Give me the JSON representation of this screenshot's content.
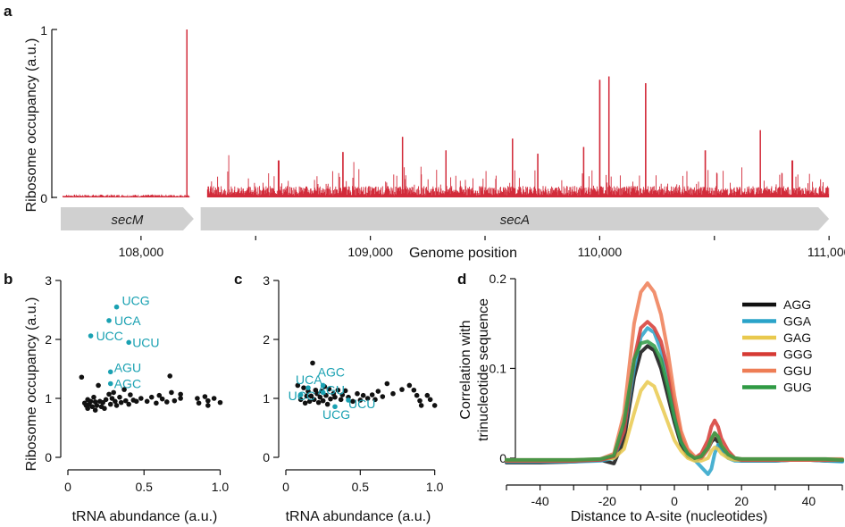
{
  "chart_data": [
    {
      "panel": "a",
      "type": "area",
      "ylabel": "Ribosome occupancy (a.u.)",
      "xlabel": "Genome position",
      "ylim": [
        0,
        1
      ],
      "yticks": [
        "0",
        "1"
      ],
      "xlim": [
        107650,
        111050
      ],
      "xticks": [
        {
          "value": 108000,
          "label": "108,000"
        },
        {
          "value": 108500,
          "label": ""
        },
        {
          "value": 109000,
          "label": "109,000"
        },
        {
          "value": 109500,
          "label": ""
        },
        {
          "value": 110000,
          "label": "110,000"
        },
        {
          "value": 110500,
          "label": ""
        },
        {
          "value": 111000,
          "label": "111,000"
        }
      ],
      "color": "#d22b3a",
      "genes": [
        {
          "name": "secM",
          "start": 107650,
          "end": 108230
        },
        {
          "name": "secA",
          "start": 108260,
          "end": 111000
        }
      ],
      "profile_range": [
        [
          107660,
          108210
        ],
        [
          108290,
          111000
        ]
      ],
      "baseline_level": [
        0.01,
        0.04
      ],
      "peaks": [
        {
          "x": 108200,
          "y": 1.0
        },
        {
          "x": 108600,
          "y": 0.22
        },
        {
          "x": 108880,
          "y": 0.27
        },
        {
          "x": 109140,
          "y": 0.36
        },
        {
          "x": 109330,
          "y": 0.28
        },
        {
          "x": 109620,
          "y": 0.35
        },
        {
          "x": 109730,
          "y": 0.26
        },
        {
          "x": 109930,
          "y": 0.3
        },
        {
          "x": 110000,
          "y": 0.7
        },
        {
          "x": 110040,
          "y": 0.72
        },
        {
          "x": 110200,
          "y": 0.68
        },
        {
          "x": 110460,
          "y": 0.28
        },
        {
          "x": 110700,
          "y": 0.4
        },
        {
          "x": 110840,
          "y": 0.22
        }
      ]
    },
    {
      "panel": "b",
      "type": "scatter",
      "ylabel": "Ribosome  occupancy (a.u.)",
      "xlabel": "tRNA abundance (a.u.)",
      "xlim": [
        0,
        1.05
      ],
      "ylim": [
        0,
        3
      ],
      "xticks": [
        "0",
        "0.5",
        "1.0"
      ],
      "yticks": [
        "0",
        "1",
        "2",
        "3"
      ],
      "highlight_color": "#1aa1b2",
      "highlighted": [
        {
          "label": "UCG",
          "x": 0.32,
          "y": 2.55
        },
        {
          "label": "UCA",
          "x": 0.27,
          "y": 2.32
        },
        {
          "label": "UCC",
          "x": 0.15,
          "y": 2.06
        },
        {
          "label": "UCU",
          "x": 0.4,
          "y": 1.95
        },
        {
          "label": "AGU",
          "x": 0.28,
          "y": 1.45
        },
        {
          "label": "AGC",
          "x": 0.28,
          "y": 1.25
        }
      ],
      "points": [
        [
          0.09,
          1.36
        ],
        [
          0.11,
          0.92
        ],
        [
          0.12,
          0.88
        ],
        [
          0.13,
          0.98
        ],
        [
          0.13,
          0.83
        ],
        [
          0.14,
          0.9
        ],
        [
          0.15,
          0.95
        ],
        [
          0.16,
          0.86
        ],
        [
          0.17,
          1.02
        ],
        [
          0.18,
          0.94
        ],
        [
          0.18,
          0.8
        ],
        [
          0.19,
          0.88
        ],
        [
          0.2,
          1.22
        ],
        [
          0.21,
          0.95
        ],
        [
          0.22,
          0.86
        ],
        [
          0.23,
          0.93
        ],
        [
          0.24,
          0.83
        ],
        [
          0.25,
          0.98
        ],
        [
          0.27,
          1.07
        ],
        [
          0.28,
          0.9
        ],
        [
          0.29,
          1.0
        ],
        [
          0.3,
          1.1
        ],
        [
          0.31,
          0.95
        ],
        [
          0.32,
          0.88
        ],
        [
          0.34,
          1.02
        ],
        [
          0.35,
          0.93
        ],
        [
          0.37,
          1.15
        ],
        [
          0.38,
          0.96
        ],
        [
          0.4,
          0.9
        ],
        [
          0.41,
          1.06
        ],
        [
          0.43,
          0.97
        ],
        [
          0.45,
          0.95
        ],
        [
          0.48,
          1.0
        ],
        [
          0.52,
          0.95
        ],
        [
          0.55,
          1.02
        ],
        [
          0.58,
          0.92
        ],
        [
          0.6,
          1.05
        ],
        [
          0.62,
          0.99
        ],
        [
          0.65,
          0.94
        ],
        [
          0.67,
          1.38
        ],
        [
          0.68,
          1.1
        ],
        [
          0.7,
          0.96
        ],
        [
          0.74,
          1.07
        ],
        [
          0.74,
          1.0
        ],
        [
          0.85,
          1.0
        ],
        [
          0.86,
          0.92
        ],
        [
          0.9,
          1.03
        ],
        [
          0.92,
          0.96
        ],
        [
          0.92,
          0.88
        ],
        [
          0.96,
          1.0
        ],
        [
          1.0,
          0.93
        ]
      ]
    },
    {
      "panel": "c",
      "type": "scatter",
      "xlabel": "tRNA abundance (a.u.)",
      "xlim": [
        0,
        1.05
      ],
      "ylim": [
        0,
        3
      ],
      "xticks": [
        "0",
        "0.5",
        "1.0"
      ],
      "yticks": [
        "0",
        "1",
        "2",
        "3"
      ],
      "highlight_color": "#1aa1b2",
      "highlighted": [
        {
          "label": "UCA",
          "x": 0.15,
          "y": 1.18
        },
        {
          "label": "AGC",
          "x": 0.25,
          "y": 1.22
        },
        {
          "label": "UCC",
          "x": 0.1,
          "y": 1.06
        },
        {
          "label": "AGU",
          "x": 0.25,
          "y": 1.1
        },
        {
          "label": "UCU",
          "x": 0.42,
          "y": 0.97
        },
        {
          "label": "UCG",
          "x": 0.33,
          "y": 0.86
        }
      ],
      "points": [
        [
          0.08,
          1.22
        ],
        [
          0.1,
          0.98
        ],
        [
          0.12,
          1.18
        ],
        [
          0.13,
          0.92
        ],
        [
          0.14,
          1.04
        ],
        [
          0.15,
          1.12
        ],
        [
          0.16,
          0.95
        ],
        [
          0.17,
          1.04
        ],
        [
          0.18,
          1.6
        ],
        [
          0.19,
          0.98
        ],
        [
          0.2,
          1.14
        ],
        [
          0.21,
          1.08
        ],
        [
          0.22,
          0.93
        ],
        [
          0.23,
          1.02
        ],
        [
          0.24,
          1.12
        ],
        [
          0.25,
          0.96
        ],
        [
          0.26,
          1.2
        ],
        [
          0.27,
          1.05
        ],
        [
          0.28,
          0.9
        ],
        [
          0.29,
          1.16
        ],
        [
          0.3,
          0.99
        ],
        [
          0.32,
          1.08
        ],
        [
          0.33,
          1.02
        ],
        [
          0.35,
          1.14
        ],
        [
          0.37,
          0.98
        ],
        [
          0.38,
          1.06
        ],
        [
          0.4,
          1.13
        ],
        [
          0.42,
          1.02
        ],
        [
          0.45,
          0.95
        ],
        [
          0.48,
          1.08
        ],
        [
          0.5,
          0.97
        ],
        [
          0.52,
          1.05
        ],
        [
          0.55,
          1.0
        ],
        [
          0.58,
          1.06
        ],
        [
          0.6,
          0.98
        ],
        [
          0.62,
          1.12
        ],
        [
          0.65,
          1.03
        ],
        [
          0.68,
          1.25
        ],
        [
          0.72,
          1.08
        ],
        [
          0.78,
          1.15
        ],
        [
          0.83,
          1.22
        ],
        [
          0.86,
          1.14
        ],
        [
          0.88,
          1.05
        ],
        [
          0.9,
          0.96
        ],
        [
          0.91,
          0.88
        ],
        [
          0.95,
          1.05
        ],
        [
          0.97,
          0.98
        ],
        [
          1.0,
          0.88
        ]
      ]
    },
    {
      "panel": "d",
      "type": "line",
      "ylabel": "Correlation with trinucleotide sequence",
      "ylabel_lines": [
        "Correlation with",
        "trinucleotide sequence"
      ],
      "xlabel": "Distance to A-site (nucleotides)",
      "xlim": [
        -50,
        50
      ],
      "ylim": [
        -0.03,
        0.2
      ],
      "xticks": [
        "-40",
        "-20",
        "0",
        "20",
        "40"
      ],
      "yticks": [
        "0",
        "0.1",
        "0.2"
      ],
      "legend_position": "top-right",
      "x": [
        -50,
        -40,
        -30,
        -22,
        -18,
        -15,
        -12,
        -10,
        -8,
        -6,
        -4,
        -2,
        0,
        2,
        4,
        6,
        8,
        10,
        11,
        12,
        13,
        14,
        16,
        18,
        20,
        25,
        30,
        35,
        40,
        45,
        50
      ],
      "series": [
        {
          "name": "AGG",
          "color": "#111111",
          "values": [
            -0.005,
            -0.005,
            -0.004,
            -0.002,
            -0.006,
            0.02,
            0.09,
            0.118,
            0.125,
            0.12,
            0.1,
            0.07,
            0.04,
            0.015,
            0.002,
            -0.002,
            0.0,
            0.01,
            0.018,
            0.022,
            0.018,
            0.01,
            0.002,
            -0.002,
            -0.003,
            -0.003,
            -0.003,
            -0.002,
            -0.002,
            -0.003,
            -0.003
          ]
        },
        {
          "name": "GGA",
          "color": "#2aa3c9",
          "values": [
            -0.004,
            -0.004,
            -0.004,
            -0.003,
            0.0,
            0.03,
            0.1,
            0.135,
            0.145,
            0.14,
            0.12,
            0.09,
            0.05,
            0.02,
            0.005,
            -0.002,
            -0.01,
            -0.018,
            -0.012,
            0.005,
            0.015,
            0.01,
            0.0,
            -0.003,
            -0.003,
            -0.003,
            -0.003,
            -0.002,
            -0.002,
            -0.003,
            -0.004
          ]
        },
        {
          "name": "GAG",
          "color": "#e9c94e",
          "values": [
            -0.003,
            -0.003,
            -0.003,
            -0.001,
            0.0,
            0.01,
            0.05,
            0.075,
            0.085,
            0.08,
            0.06,
            0.04,
            0.02,
            0.008,
            0.0,
            -0.003,
            -0.003,
            0.0,
            0.008,
            0.012,
            0.01,
            0.005,
            0.0,
            -0.002,
            -0.002,
            -0.002,
            -0.002,
            -0.002,
            -0.002,
            -0.002,
            -0.002
          ]
        },
        {
          "name": "GGG",
          "color": "#d63a34",
          "values": [
            -0.003,
            -0.003,
            -0.003,
            -0.002,
            0.002,
            0.03,
            0.11,
            0.145,
            0.152,
            0.145,
            0.13,
            0.1,
            0.06,
            0.025,
            0.008,
            0.0,
            0.005,
            0.02,
            0.035,
            0.042,
            0.035,
            0.022,
            0.008,
            0.0,
            -0.002,
            -0.002,
            -0.002,
            -0.002,
            -0.002,
            -0.002,
            -0.002
          ]
        },
        {
          "name": "GGU",
          "color": "#ee7d55",
          "values": [
            -0.002,
            -0.002,
            -0.002,
            -0.001,
            0.005,
            0.05,
            0.15,
            0.185,
            0.195,
            0.185,
            0.16,
            0.12,
            0.07,
            0.03,
            0.01,
            0.002,
            0.0,
            0.01,
            0.02,
            0.028,
            0.024,
            0.015,
            0.004,
            0.0,
            -0.001,
            -0.001,
            -0.001,
            -0.001,
            -0.001,
            -0.001,
            -0.001
          ]
        },
        {
          "name": "GUG",
          "color": "#2f9a44",
          "values": [
            -0.002,
            -0.002,
            -0.002,
            -0.001,
            0.003,
            0.04,
            0.11,
            0.128,
            0.13,
            0.125,
            0.11,
            0.08,
            0.045,
            0.018,
            0.005,
            0.0,
            0.002,
            0.012,
            0.022,
            0.028,
            0.024,
            0.014,
            0.004,
            0.0,
            -0.001,
            -0.001,
            -0.001,
            -0.001,
            -0.001,
            -0.001,
            -0.002
          ]
        }
      ]
    }
  ]
}
